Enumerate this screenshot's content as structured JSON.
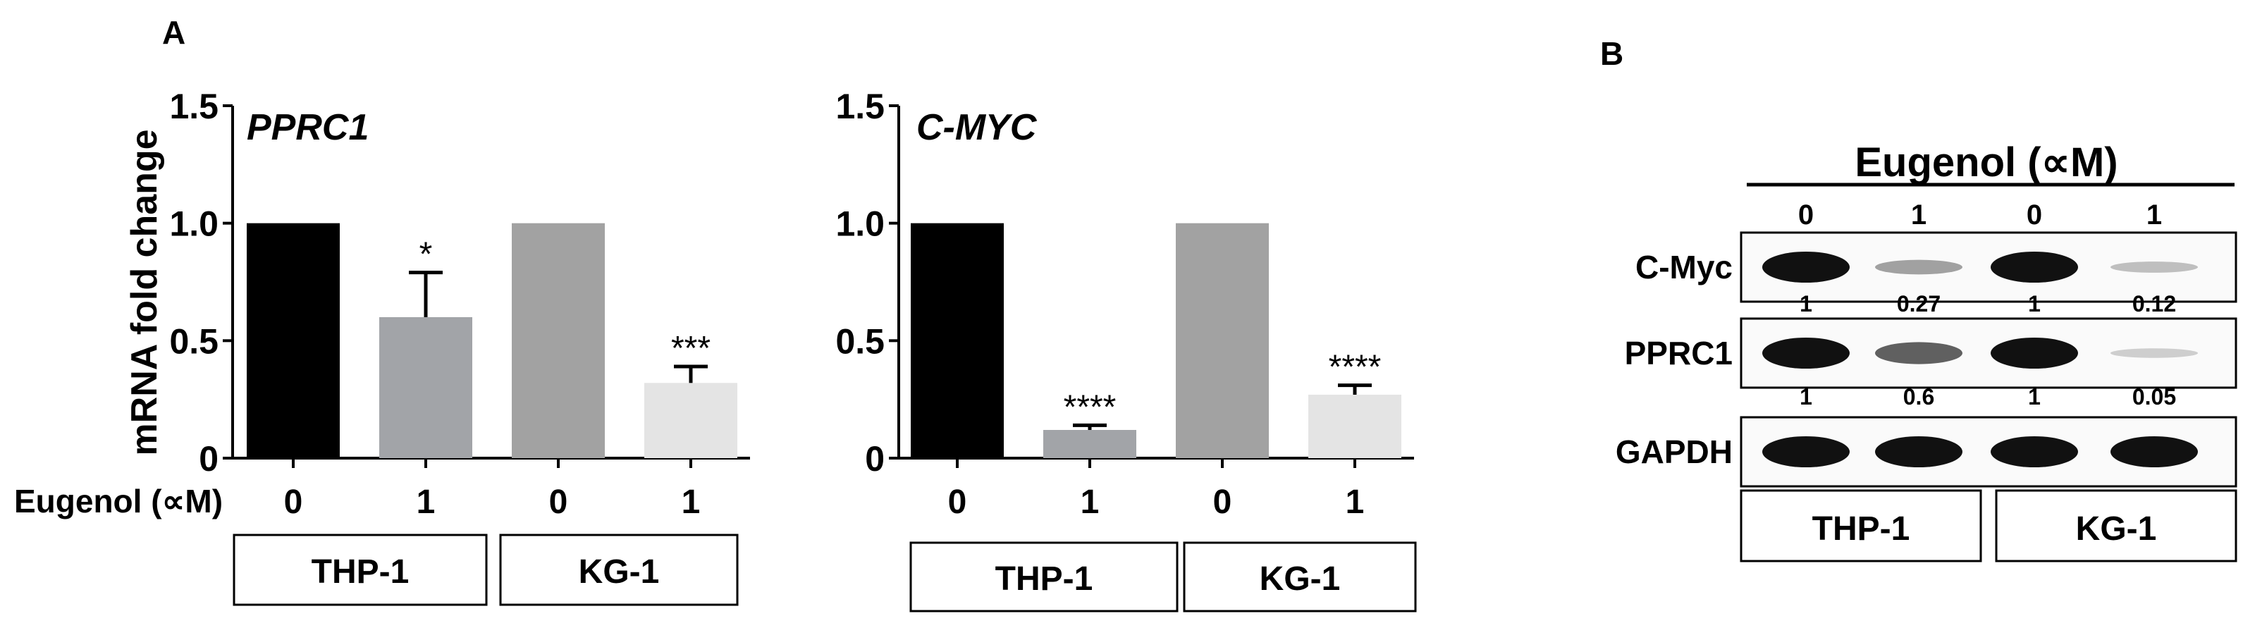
{
  "panel_a": {
    "label": "A",
    "ylabel": "mRNA fold change",
    "treatment_label": "Eugenol (∝M)",
    "group_boxes": [
      "THP-1",
      "KG-1"
    ]
  },
  "chart_data": [
    {
      "type": "bar",
      "title": "PPRC1",
      "xlabel": "Eugenol (∝M)",
      "ylabel": "mRNA fold change",
      "categories": [
        "0",
        "1",
        "0",
        "1"
      ],
      "groups": [
        "THP-1",
        "KG-1"
      ],
      "values": [
        1.0,
        0.6,
        1.0,
        0.32
      ],
      "errors": [
        0,
        0.19,
        0,
        0.07
      ],
      "significance": [
        "",
        "*",
        "",
        "***"
      ],
      "colors": [
        "#000000",
        "#a2a4a8",
        "#a2a2a2",
        "#e4e4e4"
      ],
      "ylim": [
        0,
        1.5
      ],
      "yticks": [
        "0",
        "0.5",
        "1.0",
        "1.5"
      ]
    },
    {
      "type": "bar",
      "title": "C-MYC",
      "xlabel": "",
      "ylabel": "",
      "categories": [
        "0",
        "1",
        "0",
        "1"
      ],
      "groups": [
        "THP-1",
        "KG-1"
      ],
      "values": [
        1.0,
        0.12,
        1.0,
        0.27
      ],
      "errors": [
        0,
        0.02,
        0,
        0.04
      ],
      "significance": [
        "",
        "****",
        "",
        "****"
      ],
      "colors": [
        "#000000",
        "#a2a4a8",
        "#a2a2a2",
        "#e4e4e4"
      ],
      "ylim": [
        0,
        1.5
      ],
      "yticks": [
        "0",
        "0.5",
        "1.0",
        "1.5"
      ]
    }
  ],
  "panel_b": {
    "label": "B",
    "treatment_title": "Eugenol (∝M)",
    "lanes": [
      "0",
      "1",
      "0",
      "1"
    ],
    "blots": [
      {
        "name": "C-Myc",
        "band_intensity": [
          1,
          0.27,
          1,
          0.12
        ],
        "quant": [
          "1",
          "0.27",
          "1",
          "0.12"
        ]
      },
      {
        "name": "PPRC1",
        "band_intensity": [
          1,
          0.6,
          1,
          0.05
        ],
        "quant": [
          "1",
          "0.6",
          "1",
          "0.05"
        ]
      },
      {
        "name": "GAPDH",
        "band_intensity": [
          1,
          1,
          1,
          1
        ],
        "quant": []
      }
    ],
    "group_boxes": [
      "THP-1",
      "KG-1"
    ]
  }
}
